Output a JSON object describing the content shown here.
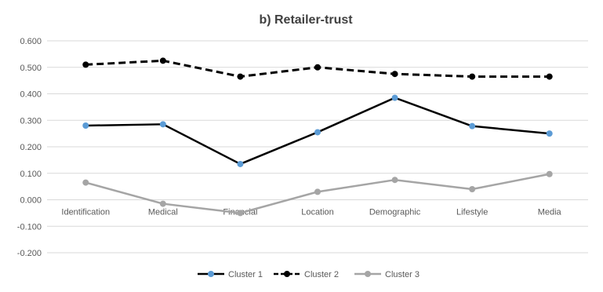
{
  "chart_data": {
    "type": "line",
    "title": "b) Retailer-trust",
    "xlabel": "",
    "ylabel": "",
    "categories": [
      "Identification",
      "Medical",
      "Financial",
      "Location",
      "Demographic",
      "Lifestyle",
      "Media"
    ],
    "ylim": [
      -0.2,
      0.6
    ],
    "yticks": [
      "0.600",
      "0.500",
      "0.400",
      "0.300",
      "0.200",
      "0.100",
      "0.000",
      "-0.100",
      "-0.200"
    ],
    "ytick_values": [
      0.6,
      0.5,
      0.4,
      0.3,
      0.2,
      0.1,
      0.0,
      -0.1,
      -0.2
    ],
    "grid": true,
    "legend_position": "bottom",
    "series": [
      {
        "name": "Cluster 1",
        "values": [
          0.28,
          0.285,
          0.135,
          0.255,
          0.385,
          0.278,
          0.25
        ],
        "line_color": "#000000",
        "marker_color": "#5b9bd5",
        "dash": "solid"
      },
      {
        "name": "Cluster 2",
        "values": [
          0.51,
          0.525,
          0.465,
          0.5,
          0.475,
          0.465,
          0.465
        ],
        "line_color": "#000000",
        "marker_color": "#000000",
        "dash": "dashed"
      },
      {
        "name": "Cluster 3",
        "values": [
          0.065,
          -0.015,
          -0.05,
          0.03,
          0.075,
          0.04,
          0.097
        ],
        "line_color": "#a5a5a5",
        "marker_color": "#a5a5a5",
        "dash": "solid"
      }
    ]
  }
}
